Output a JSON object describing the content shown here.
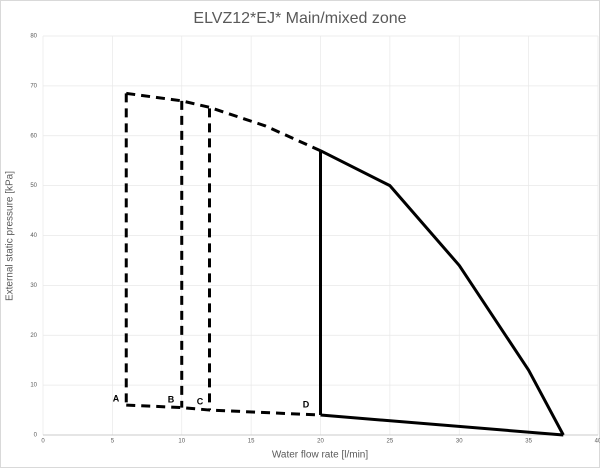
{
  "chart_data": {
    "type": "line",
    "title": "ELVZ12*EJ* Main/mixed zone",
    "x_label": "Water flow rate [l/min]",
    "y_label": "External static pressure [kPa]",
    "xlim": [
      0,
      40
    ],
    "xticks": [
      0,
      5,
      10,
      15,
      20,
      25,
      30,
      35,
      40
    ],
    "ylim": [
      0,
      80
    ],
    "yticks": [
      0,
      10,
      20,
      30,
      40,
      50,
      60,
      70,
      80
    ],
    "grid": true,
    "series": [
      {
        "color": "#000000",
        "dashed": true,
        "x": [
          6,
          10,
          12,
          16,
          20
        ],
        "values": [
          68.5,
          67,
          65.7,
          62,
          57
        ]
      },
      {
        "color": "#000000",
        "dashed": false,
        "x": [
          20,
          25,
          30,
          35,
          37.5
        ],
        "values": [
          57,
          50,
          34,
          13,
          0
        ]
      },
      {
        "color": "#000000",
        "dashed": false,
        "x": [
          20,
          20
        ],
        "values": [
          57,
          4
        ]
      },
      {
        "color": "#000000",
        "dashed": false,
        "x": [
          20,
          37.5
        ],
        "values": [
          4,
          0
        ]
      },
      {
        "color": "#000000",
        "dashed": true,
        "x": [
          6,
          6
        ],
        "values": [
          68.5,
          6
        ]
      },
      {
        "color": "#000000",
        "dashed": true,
        "x": [
          10,
          10
        ],
        "values": [
          67,
          5.5
        ]
      },
      {
        "color": "#000000",
        "dashed": true,
        "x": [
          12,
          12
        ],
        "values": [
          65.5,
          5
        ]
      },
      {
        "color": "#000000",
        "dashed": true,
        "x": [
          6,
          10,
          12,
          20
        ],
        "values": [
          6,
          5.5,
          5,
          4
        ]
      }
    ],
    "annotations": [
      "A",
      "B",
      "C",
      "D"
    ]
  }
}
